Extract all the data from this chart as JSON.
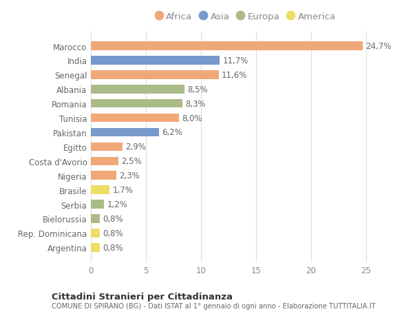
{
  "categories": [
    "Marocco",
    "India",
    "Senegal",
    "Albania",
    "Romania",
    "Tunisia",
    "Pakistan",
    "Egitto",
    "Costa d'Avorio",
    "Nigeria",
    "Brasile",
    "Serbia",
    "Bielorussia",
    "Rep. Dominicana",
    "Argentina"
  ],
  "values": [
    24.7,
    11.7,
    11.6,
    8.5,
    8.3,
    8.0,
    6.2,
    2.9,
    2.5,
    2.3,
    1.7,
    1.2,
    0.8,
    0.8,
    0.8
  ],
  "labels": [
    "24,7%",
    "11,7%",
    "11,6%",
    "8,5%",
    "8,3%",
    "8,0%",
    "6,2%",
    "2,9%",
    "2,5%",
    "2,3%",
    "1,7%",
    "1,2%",
    "0,8%",
    "0,8%",
    "0,8%"
  ],
  "continents": [
    "Africa",
    "Asia",
    "Africa",
    "Europa",
    "Europa",
    "Africa",
    "Asia",
    "Africa",
    "Africa",
    "Africa",
    "America",
    "Europa",
    "Europa",
    "America",
    "America"
  ],
  "colors": {
    "Africa": "#F0A878",
    "Asia": "#7799CC",
    "Europa": "#AABB88",
    "America": "#EEDD66"
  },
  "legend_order": [
    "Africa",
    "Asia",
    "Europa",
    "America"
  ],
  "xlim": [
    0,
    27
  ],
  "xticks": [
    0,
    5,
    10,
    15,
    20,
    25
  ],
  "title_main": "Cittadini Stranieri per Cittadinanza",
  "title_sub": "COMUNE DI SPIRANO (BG) - Dati ISTAT al 1° gennaio di ogni anno - Elaborazione TUTTITALIA.IT",
  "bg_color": "#FFFFFF",
  "grid_color": "#DDDDDD",
  "bar_height": 0.6,
  "label_fontsize": 8.5,
  "tick_fontsize": 8.5,
  "legend_fontsize": 9.5
}
